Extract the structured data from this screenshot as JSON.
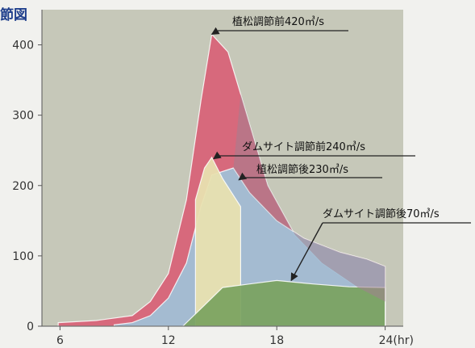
{
  "title_fragment": "節図",
  "chart_data": {
    "type": "area",
    "xlabel": "",
    "ylabel": "",
    "x_unit": "(hr)",
    "xlim": [
      5,
      25
    ],
    "ylim": [
      0,
      450
    ],
    "x_ticks": [
      6,
      12,
      18,
      24
    ],
    "x_tick_labels": [
      "6",
      "12",
      "18",
      "24(hr)"
    ],
    "y_ticks": [
      0,
      100,
      200,
      300,
      400
    ],
    "grid": false,
    "colors": {
      "plot_bg": "#c6c8b9",
      "outer_bg": "#f1f1ee",
      "red": "#d86478",
      "blue": "#9fc4da",
      "purple": "#a3808f",
      "green": "#7aa25e"
    },
    "series": [
      {
        "x": [
          5.9,
          8,
          10,
          11,
          12,
          13,
          13.8,
          14.4,
          15.3,
          16,
          17.5,
          19,
          20.5,
          22.5,
          24
        ],
        "values": [
          5,
          8,
          15,
          35,
          75,
          180,
          320,
          415,
          390,
          330,
          200,
          130,
          90,
          55,
          35
        ]
      },
      {
        "x": [
          9,
          10,
          11,
          12,
          13,
          13.8,
          14.4,
          15.6,
          16.5,
          18,
          19.5,
          21.5,
          23,
          24
        ],
        "values": [
          2,
          5,
          15,
          40,
          90,
          170,
          215,
          225,
          190,
          150,
          125,
          105,
          95,
          85
        ]
      },
      {
        "x": [
          13.5,
          14,
          14.4,
          15,
          16
        ],
        "values": [
          180,
          225,
          240,
          210,
          170
        ]
      },
      {
        "x": [
          12.8,
          14,
          15,
          16.5,
          18,
          20,
          22,
          24
        ],
        "values": [
          0,
          30,
          55,
          60,
          65,
          60,
          56,
          55
        ]
      }
    ],
    "annotations": [
      {
        "text": "植松調節前420㎥/s",
        "target_x": 14.4,
        "target_y": 415
      },
      {
        "text": "ダムサイト調節前240㎥/s",
        "target_x": 14.5,
        "target_y": 238
      },
      {
        "text": "植松調節後230㎥/s",
        "target_x": 15.9,
        "target_y": 208
      },
      {
        "text": "ダムサイト調節後70㎥/s",
        "target_x": 18.8,
        "target_y": 65
      }
    ]
  }
}
